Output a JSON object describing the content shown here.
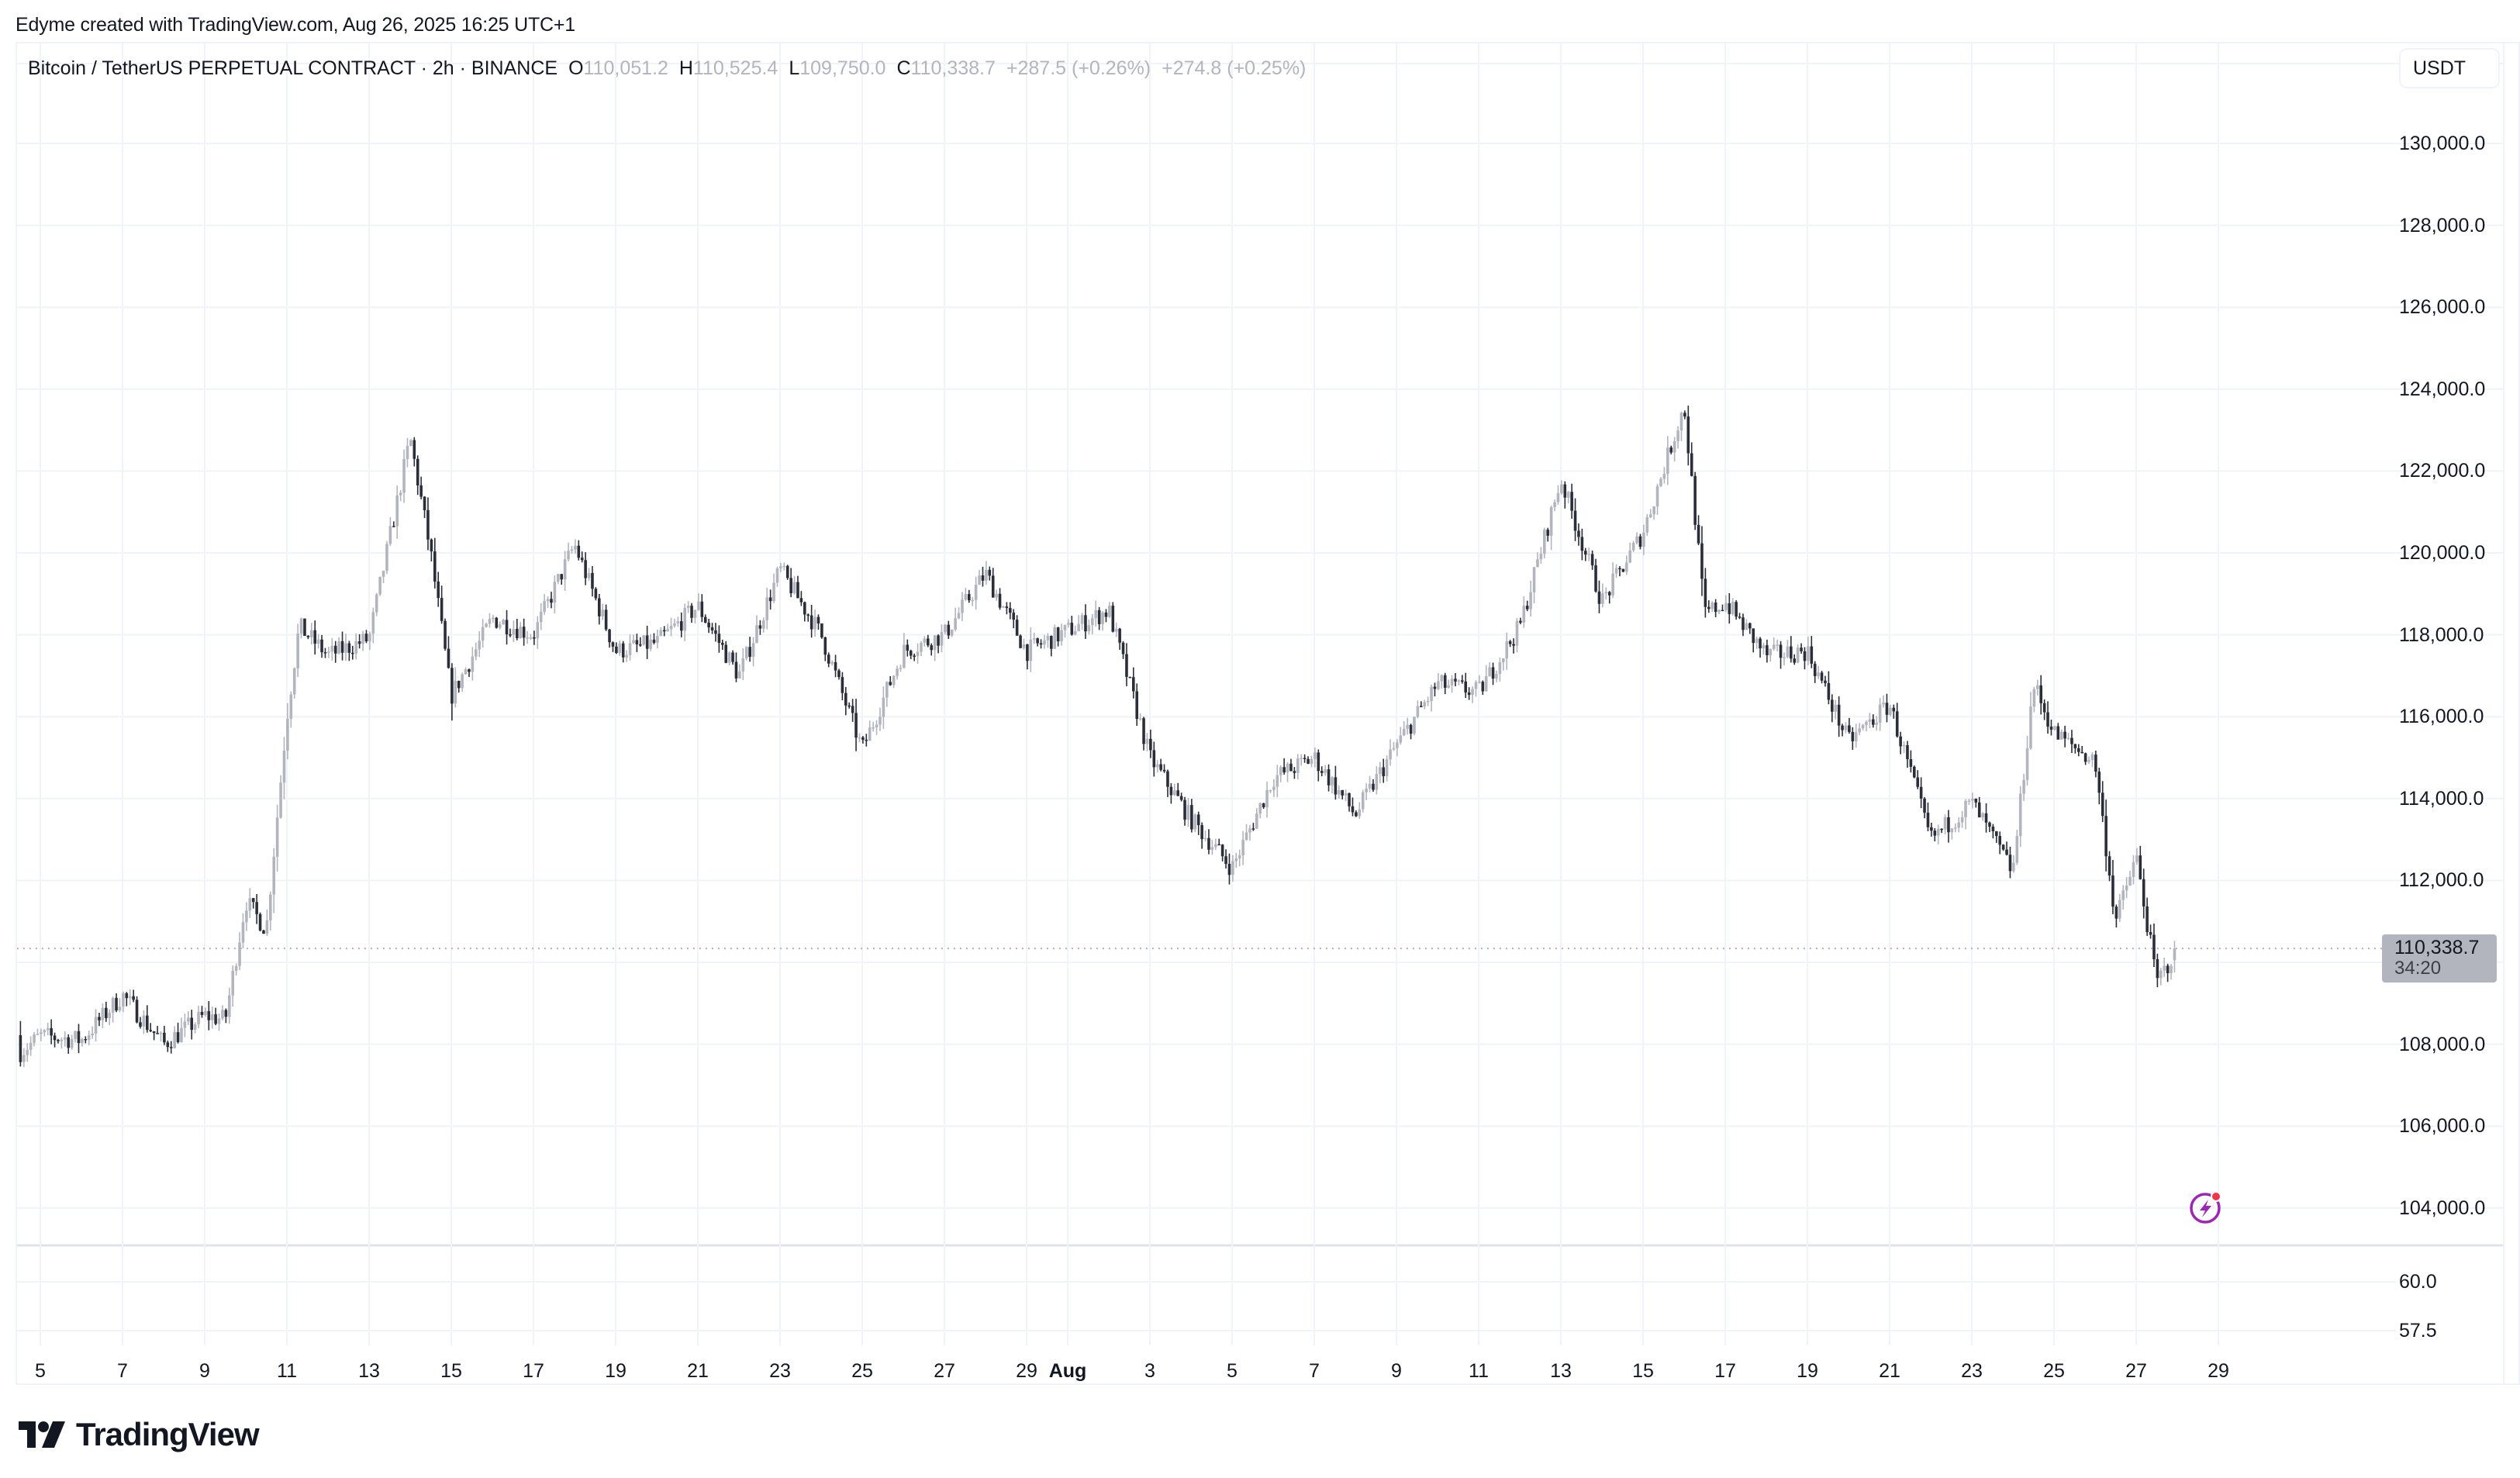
{
  "attribution": "Edyme created with TradingView.com, Aug 26, 2025 16:25 UTC+1",
  "legend": {
    "symbol": "Bitcoin / TetherUS PERPETUAL CONTRACT · 2h · BINANCE",
    "open_key": "O",
    "open": "110,051.2",
    "high_key": "H",
    "high": "110,525.4",
    "low_key": "L",
    "low": "109,750.0",
    "close_key": "C",
    "close": "110,338.7",
    "change": "+287.5 (+0.26%)",
    "change2": "+274.8 (+0.25%)"
  },
  "currency": "USDT",
  "price_label": {
    "price": "110,338.7",
    "countdown": "34:20"
  },
  "logo": {
    "text": "TradingView"
  },
  "colors": {
    "up": "#b2b5be",
    "down": "#2a2e39",
    "grid": "#f0f3fa",
    "last_price_line": "#b2b5be",
    "bolt": "#9c27b0",
    "bolt_dot": "#f23645"
  },
  "price_axis": {
    "labels": [
      "130,000.0",
      "128,000.0",
      "126,000.0",
      "124,000.0",
      "122,000.0",
      "120,000.0",
      "118,000.0",
      "116,000.0",
      "114,000.0",
      "112,000.0",
      "108,000.0",
      "106,000.0",
      "104,000.0"
    ],
    "values": [
      130000,
      128000,
      126000,
      124000,
      122000,
      120000,
      118000,
      116000,
      114000,
      112000,
      108000,
      106000,
      104000
    ]
  },
  "sub_axis": {
    "labels": [
      "60.0",
      "57.5"
    ]
  },
  "time_axis": {
    "labels": [
      "5",
      "7",
      "9",
      "11",
      "13",
      "15",
      "17",
      "19",
      "21",
      "23",
      "25",
      "27",
      "29",
      "Aug",
      "3",
      "5",
      "7",
      "9",
      "11",
      "13",
      "15",
      "17",
      "19",
      "21",
      "23",
      "25",
      "27",
      "29"
    ],
    "bold": [
      false,
      false,
      false,
      false,
      false,
      false,
      false,
      false,
      false,
      false,
      false,
      false,
      false,
      true,
      false,
      false,
      false,
      false,
      false,
      false,
      false,
      false,
      false,
      false,
      false,
      false,
      false,
      false
    ]
  },
  "chart_data": {
    "type": "candlestick",
    "title": "Bitcoin / TetherUS PERPETUAL CONTRACT · 2h · BINANCE",
    "xlabel": "",
    "ylabel": "USDT",
    "x_range": [
      "Jul 4, 2025",
      "Aug 26, 2025"
    ],
    "ylim": [
      103000,
      131000
    ],
    "grid": true,
    "last": {
      "open": 110051.2,
      "high": 110525.4,
      "low": 109750.0,
      "close": 110338.7
    },
    "path_keypoints": [
      {
        "date": "Jul 4",
        "price": 109200
      },
      {
        "date": "Jul 4.5",
        "price": 107800
      },
      {
        "date": "Jul 5",
        "price": 108200
      },
      {
        "date": "Jul 6",
        "price": 108100
      },
      {
        "date": "Jul 7",
        "price": 109200
      },
      {
        "date": "Jul 8",
        "price": 108000
      },
      {
        "date": "Jul 9",
        "price": 108700
      },
      {
        "date": "Jul 9.5",
        "price": 108600
      },
      {
        "date": "Jul 10",
        "price": 111500
      },
      {
        "date": "Jul 10.5",
        "price": 110800
      },
      {
        "date": "Jul 11",
        "price": 116000
      },
      {
        "date": "Jul 11.3",
        "price": 118200
      },
      {
        "date": "Jul 12",
        "price": 117500
      },
      {
        "date": "Jul 13",
        "price": 117900
      },
      {
        "date": "Jul 14",
        "price": 122800
      },
      {
        "date": "Jul 14.5",
        "price": 120000
      },
      {
        "date": "Jul 15",
        "price": 116500
      },
      {
        "date": "Jul 16",
        "price": 118400
      },
      {
        "date": "Jul 17",
        "price": 118000
      },
      {
        "date": "Jul 18",
        "price": 120200
      },
      {
        "date": "Jul 19",
        "price": 117600
      },
      {
        "date": "Jul 20",
        "price": 117800
      },
      {
        "date": "Jul 21",
        "price": 118700
      },
      {
        "date": "Jul 22",
        "price": 117000
      },
      {
        "date": "Jul 23",
        "price": 119600
      },
      {
        "date": "Jul 24",
        "price": 118000
      },
      {
        "date": "Jul 25",
        "price": 115200
      },
      {
        "date": "Jul 26",
        "price": 117600
      },
      {
        "date": "Jul 27",
        "price": 118000
      },
      {
        "date": "Jul 28",
        "price": 119500
      },
      {
        "date": "Jul 29",
        "price": 117600
      },
      {
        "date": "Jul 30",
        "price": 118100
      },
      {
        "date": "Jul 31",
        "price": 118600
      },
      {
        "date": "Aug 1",
        "price": 115000
      },
      {
        "date": "Aug 2",
        "price": 113500
      },
      {
        "date": "Aug 3",
        "price": 112300
      },
      {
        "date": "Aug 4",
        "price": 114500
      },
      {
        "date": "Aug 5",
        "price": 115000
      },
      {
        "date": "Aug 6",
        "price": 113600
      },
      {
        "date": "Aug 7",
        "price": 115300
      },
      {
        "date": "Aug 8",
        "price": 116800
      },
      {
        "date": "Aug 9",
        "price": 116600
      },
      {
        "date": "Aug 10",
        "price": 118200
      },
      {
        "date": "Aug 11",
        "price": 121800
      },
      {
        "date": "Aug 12",
        "price": 118800
      },
      {
        "date": "Aug 13",
        "price": 120500
      },
      {
        "date": "Aug 14",
        "price": 123600
      },
      {
        "date": "Aug 14.5",
        "price": 118500
      },
      {
        "date": "Aug 15",
        "price": 118800
      },
      {
        "date": "Aug 16",
        "price": 117500
      },
      {
        "date": "Aug 17",
        "price": 117600
      },
      {
        "date": "Aug 18",
        "price": 115400
      },
      {
        "date": "Aug 19",
        "price": 116300
      },
      {
        "date": "Aug 20",
        "price": 113000
      },
      {
        "date": "Aug 21",
        "price": 113900
      },
      {
        "date": "Aug 22",
        "price": 112200
      },
      {
        "date": "Aug 22.5",
        "price": 116800
      },
      {
        "date": "Aug 23",
        "price": 115600
      },
      {
        "date": "Aug 24",
        "price": 114900
      },
      {
        "date": "Aug 24.5",
        "price": 111000
      },
      {
        "date": "Aug 25",
        "price": 112600
      },
      {
        "date": "Aug 25.5",
        "price": 109500
      },
      {
        "date": "Aug 26",
        "price": 110338.7
      }
    ],
    "annotations": {
      "last_price": 110338.7,
      "countdown": "34:20"
    }
  }
}
